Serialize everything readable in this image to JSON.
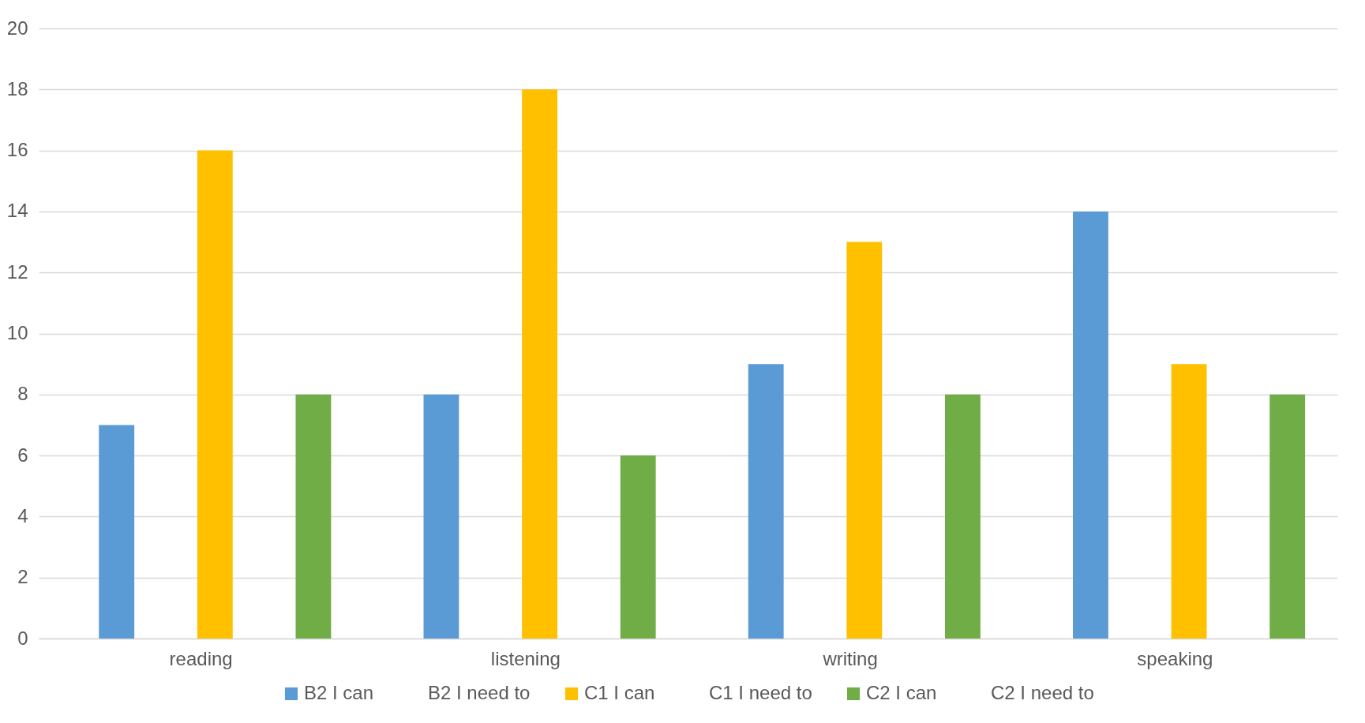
{
  "chart_data": {
    "type": "bar",
    "categories": [
      "reading",
      "listening",
      "writing",
      "speaking"
    ],
    "series": [
      {
        "name": "B2 I can",
        "color": "#5b9bd5",
        "values": [
          7,
          8,
          9,
          14
        ]
      },
      {
        "name": "B2 I need to",
        "values": [
          0,
          0,
          0,
          0
        ]
      },
      {
        "name": "C1 I can",
        "color": "#ffc000",
        "values": [
          16,
          18,
          13,
          9
        ]
      },
      {
        "name": "C1 I need to",
        "values": [
          0,
          0,
          0,
          0
        ]
      },
      {
        "name": "C2 I can",
        "color": "#70ad47",
        "values": [
          8,
          6,
          8,
          8
        ]
      },
      {
        "name": "C2 I need to",
        "values": [
          0,
          0,
          0,
          0
        ]
      }
    ],
    "ylim": [
      0,
      20
    ],
    "yticks": [
      0,
      2,
      4,
      6,
      8,
      10,
      12,
      14,
      16,
      18,
      20
    ],
    "grid": "y",
    "legend": "bottom"
  }
}
